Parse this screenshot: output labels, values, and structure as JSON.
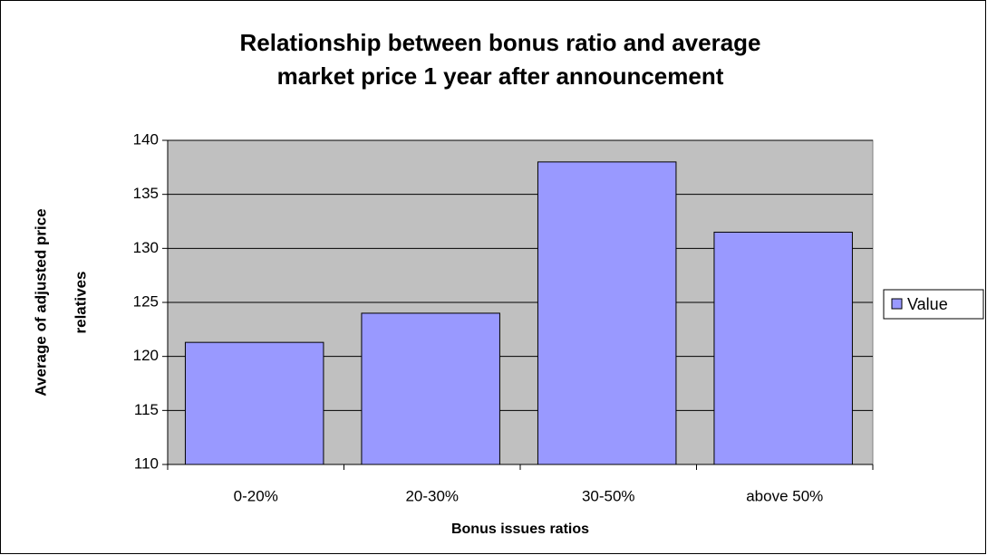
{
  "chart_data": {
    "type": "bar",
    "title": [
      "Relationship between bonus ratio and average",
      "market price 1 year after announcement"
    ],
    "x_label": "Bonus issues ratios",
    "y_label": [
      "Average of adjusted price",
      "relatives"
    ],
    "categories": [
      "0-20%",
      "20-30%",
      "30-50%",
      "above 50%"
    ],
    "series": [
      {
        "name": "Value",
        "color": "#9999ff",
        "values": [
          121.3,
          124.0,
          138.0,
          131.5
        ]
      }
    ],
    "ylim": [
      110,
      140
    ],
    "yticks": [
      110,
      115,
      120,
      125,
      130,
      135,
      140
    ],
    "grid": true,
    "legend": "right"
  }
}
